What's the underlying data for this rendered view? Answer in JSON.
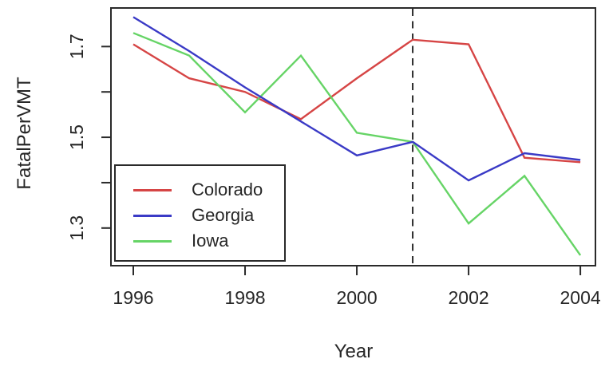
{
  "chart_data": {
    "type": "line",
    "title": "",
    "xlabel": "Year",
    "ylabel": "FatalPerVMT",
    "x": [
      1996,
      1997,
      1998,
      1999,
      2000,
      2001,
      2002,
      2003,
      2004
    ],
    "series": [
      {
        "name": "Colorado",
        "color": "#d64545",
        "values": [
          1.705,
          1.63,
          1.6,
          1.54,
          1.63,
          1.715,
          1.705,
          1.455,
          1.445
        ]
      },
      {
        "name": "Georgia",
        "color": "#3a3ac6",
        "values": [
          1.765,
          1.69,
          1.61,
          1.535,
          1.46,
          1.49,
          1.405,
          1.465,
          1.45
        ]
      },
      {
        "name": "Iowa",
        "color": "#66d466",
        "values": [
          1.73,
          1.68,
          1.555,
          1.68,
          1.51,
          1.49,
          1.31,
          1.415,
          1.24
        ]
      }
    ],
    "x_ticks": [
      1996,
      1998,
      2000,
      2002,
      2004
    ],
    "x_tick_labels": [
      "1996",
      "1998",
      "2000",
      "2002",
      "2004"
    ],
    "y_ticks": [
      1.3,
      1.4,
      1.5,
      1.6,
      1.7
    ],
    "y_tick_labels": [
      {
        "value": 1.3,
        "label": "1.3"
      },
      {
        "value": 1.5,
        "label": "1.5"
      },
      {
        "value": 1.7,
        "label": "1.7"
      }
    ],
    "xlim": [
      1995.6,
      2004.27
    ],
    "ylim": [
      1.217,
      1.785
    ],
    "grid": false,
    "reference_line": {
      "orientation": "vertical",
      "x": 2001,
      "style": "dashed",
      "color": "#2a2a2a"
    },
    "legend": {
      "position": "inside-bottom-left",
      "entries": [
        "Colorado",
        "Georgia",
        "Iowa"
      ]
    },
    "axis_color": "#2a2a2a",
    "text_color": "#262626"
  }
}
